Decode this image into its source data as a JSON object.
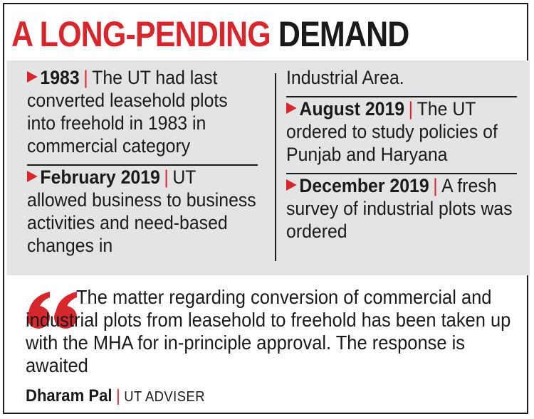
{
  "title": {
    "part1": "A LONG-PENDING",
    "part2": "DEMAND"
  },
  "timeline": [
    {
      "date": "1983",
      "text": "The UT had last converted leasehold plots into freehold in 1983 in commercial category"
    },
    {
      "date": "February 2019",
      "text": "UT allowed business to business activities and need-based changes in"
    },
    {
      "continuation": "Industrial Area."
    },
    {
      "date": "August 2019",
      "text": "The UT ordered to study policies of Punjab and Haryana"
    },
    {
      "date": "December 2019",
      "text": "A fresh survey of industrial plots was ordered"
    }
  ],
  "quote": {
    "text": "The matter regarding conversion of commercial and industrial plots from leasehold to freehold has been taken up with the MHA for in-principle approval. The response is awaited",
    "icon": "quote-marks-icon"
  },
  "byline": {
    "name": "Dharam Pal",
    "role": "UT ADVISER"
  },
  "colors": {
    "accent": "#d7262c",
    "panel": "#e4e4e4",
    "text": "#1a1a1a"
  }
}
